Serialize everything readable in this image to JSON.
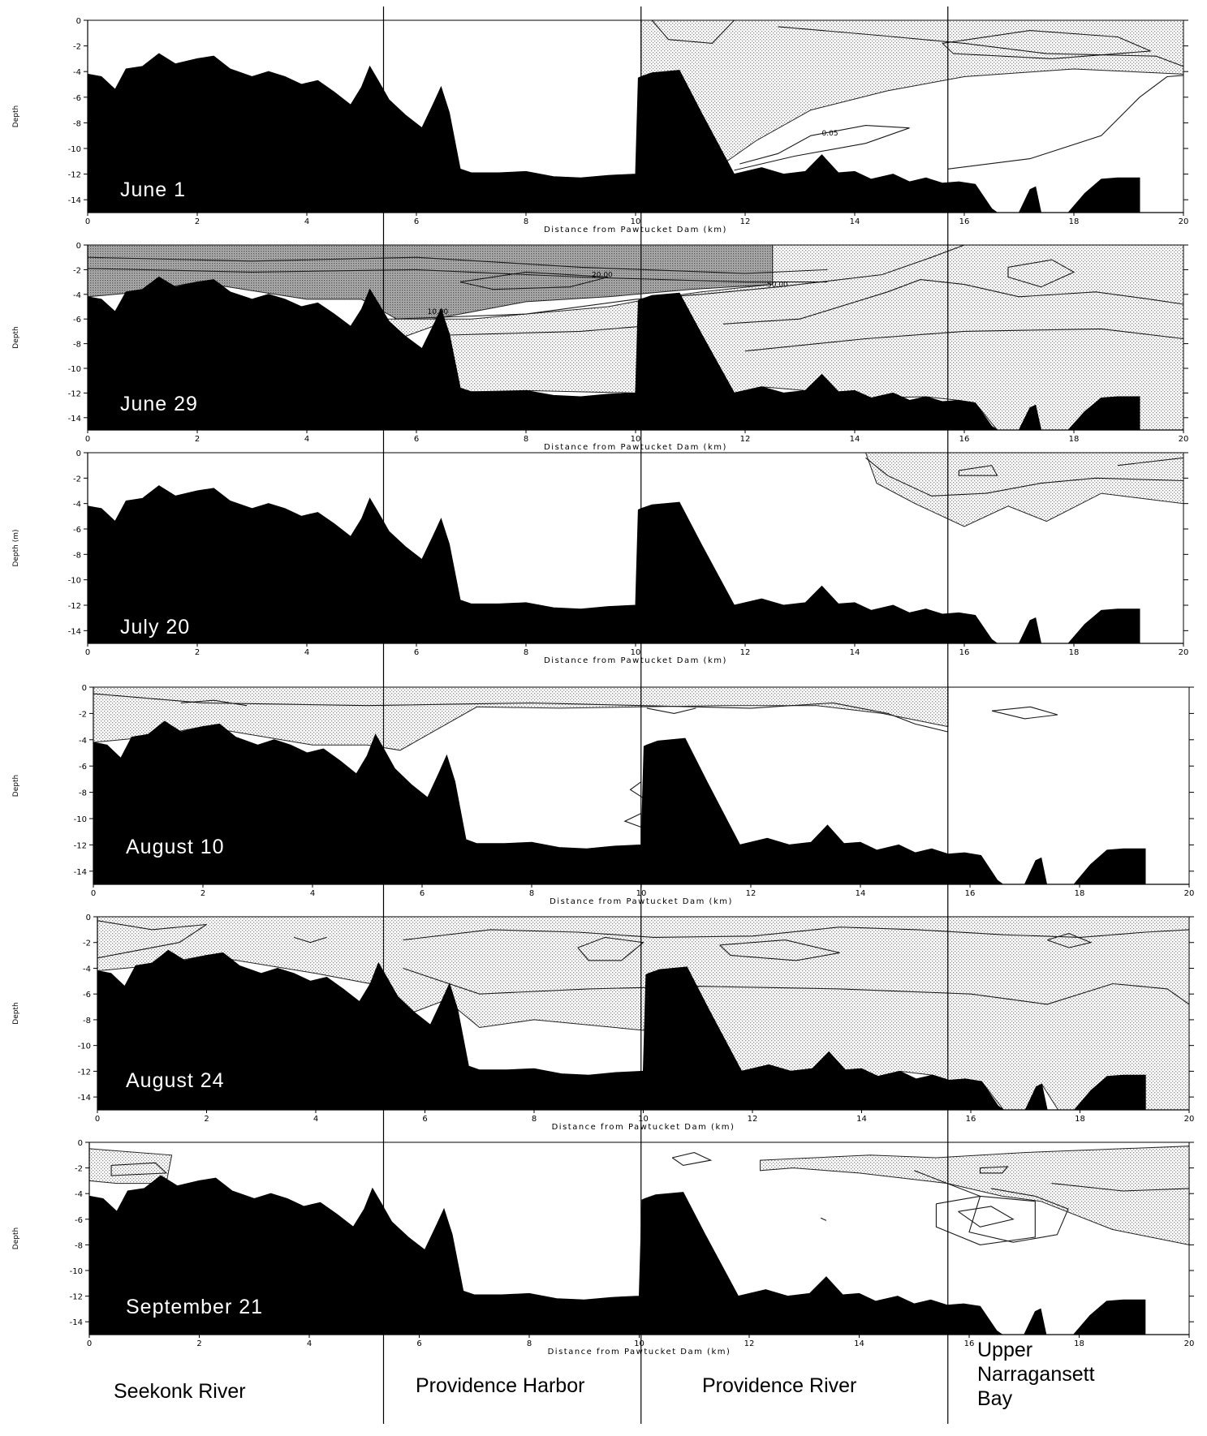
{
  "regions": {
    "seekonk": "Seekonk River",
    "harbor": "Providence Harbor",
    "river": "Providence River",
    "bay": "Upper Narragansett Bay"
  },
  "colors": {
    "bathymetry": "#000000",
    "stipple": "#9a9a9a",
    "contour": "#1a1a1a"
  },
  "chart_data": [
    {
      "type": "area",
      "title": "June 1",
      "xlabel": "Distance from Pawtucket Dam (km)",
      "ylabel": "Depth",
      "xlim": [
        0,
        20
      ],
      "ylim": [
        -15,
        0
      ],
      "x_ticks": [
        "0",
        "2",
        "4",
        "6",
        "8",
        "10",
        "12",
        "14",
        "16",
        "18",
        "20"
      ],
      "y_ticks": [
        "0",
        "-2",
        "-4",
        "-6",
        "-8",
        "-10",
        "-12",
        "-14"
      ],
      "contour_labels": [
        "0.05"
      ],
      "shading": "light-surface-east",
      "region_boundaries_km": [
        5.4,
        10.1,
        15.7
      ]
    },
    {
      "type": "area",
      "title": "June 29",
      "xlabel": "Distance from Pawtucket Dam (km)",
      "ylabel": "Depth",
      "xlim": [
        0,
        20
      ],
      "ylim": [
        -15,
        0
      ],
      "x_ticks": [
        "0",
        "2",
        "4",
        "6",
        "8",
        "10",
        "12",
        "14",
        "16",
        "18",
        "20"
      ],
      "y_ticks": [
        "0",
        "-2",
        "-4",
        "-6",
        "-8",
        "-10",
        "-12",
        "-14"
      ],
      "contour_labels": [
        "20.00",
        "50.00",
        "10.00"
      ],
      "shading": "heavy-surface-all",
      "region_boundaries_km": [
        5.4,
        10.1,
        15.7
      ]
    },
    {
      "type": "area",
      "title": "July 20",
      "xlabel": "Distance from Pawtucket Dam (km)",
      "ylabel": "Depth (m)",
      "xlim": [
        0,
        20
      ],
      "ylim": [
        -15,
        0
      ],
      "x_ticks": [
        "0",
        "2",
        "4",
        "6",
        "8",
        "10",
        "12",
        "14",
        "16",
        "18",
        "20"
      ],
      "y_ticks": [
        "0",
        "-2",
        "-4",
        "-6",
        "-8",
        "-10",
        "-12",
        "-14"
      ],
      "contour_labels": [],
      "shading": "light-surface-bay",
      "region_boundaries_km": [
        5.4,
        10.1,
        15.7
      ]
    },
    {
      "type": "area",
      "title": "August 10",
      "xlabel": "Distance from Pawtucket Dam (km)",
      "ylabel": "Depth",
      "xlim": [
        0,
        20
      ],
      "ylim": [
        -15,
        0
      ],
      "x_ticks": [
        "0",
        "2",
        "4",
        "6",
        "8",
        "10",
        "12",
        "14",
        "16",
        "18",
        "20"
      ],
      "y_ticks": [
        "0",
        "-2",
        "-4",
        "-6",
        "-8",
        "-10",
        "-12",
        "-14"
      ],
      "contour_labels": [],
      "shading": "surface-west",
      "region_boundaries_km": [
        5.4,
        10.1,
        15.7
      ]
    },
    {
      "type": "area",
      "title": "August 24",
      "xlabel": "Distance from Pawtucket Dam (km)",
      "ylabel": "Depth",
      "xlim": [
        0,
        20
      ],
      "ylim": [
        -15,
        0
      ],
      "x_ticks": [
        "0",
        "2",
        "4",
        "6",
        "8",
        "10",
        "12",
        "14",
        "16",
        "18",
        "20"
      ],
      "y_ticks": [
        "0",
        "-2",
        "-4",
        "-6",
        "-8",
        "-10",
        "-12",
        "-14"
      ],
      "contour_labels": [],
      "shading": "deep-all",
      "region_boundaries_km": [
        5.4,
        10.1,
        15.7
      ]
    },
    {
      "type": "area",
      "title": "September 21",
      "xlabel": "Distance from Pawtucket Dam (km)",
      "ylabel": "Depth",
      "xlim": [
        0,
        20
      ],
      "ylim": [
        -15,
        0
      ],
      "x_ticks": [
        "0",
        "2",
        "4",
        "6",
        "8",
        "10",
        "12",
        "14",
        "16",
        "18",
        "20"
      ],
      "y_ticks": [
        "0",
        "-2",
        "-4",
        "-6",
        "-8",
        "-10",
        "-12",
        "-14"
      ],
      "contour_labels": [],
      "shading": "surface-patchy",
      "region_boundaries_km": [
        5.4,
        10.1,
        15.7
      ]
    }
  ],
  "bathymetry": {
    "x": [
      0,
      0.25,
      0.5,
      0.7,
      1.0,
      1.3,
      1.6,
      2.0,
      2.3,
      2.6,
      3.0,
      3.3,
      3.6,
      3.9,
      4.2,
      4.5,
      4.8,
      5.0,
      5.15,
      5.3,
      5.5,
      5.8,
      6.1,
      6.3,
      6.45,
      6.6,
      6.8,
      7.0,
      7.5,
      8.0,
      8.5,
      9.0,
      9.5,
      10.0,
      10.05,
      10.1,
      10.3,
      10.8,
      11.2,
      11.8,
      12.3,
      12.7,
      13.1,
      13.4,
      13.7,
      14.0,
      14.3,
      14.7,
      15.0,
      15.3,
      15.6,
      15.9,
      16.2,
      16.5,
      16.6,
      16.8,
      17.0,
      17.2,
      17.3,
      17.4,
      17.6,
      17.9,
      18.2,
      18.5,
      18.8,
      19.1,
      19.2
    ],
    "depth": [
      -4.2,
      -4.4,
      -5.4,
      -3.8,
      -3.6,
      -2.6,
      -3.4,
      -3.0,
      -2.8,
      -3.8,
      -4.4,
      -4.0,
      -4.4,
      -5.0,
      -4.7,
      -5.6,
      -6.6,
      -5.2,
      -3.6,
      -4.7,
      -6.2,
      -7.4,
      -8.4,
      -6.6,
      -5.2,
      -7.2,
      -11.6,
      -11.9,
      -11.9,
      -11.8,
      -12.2,
      -12.3,
      -12.1,
      -12.0,
      -4.5,
      -4.4,
      -4.1,
      -3.9,
      -7.2,
      -12.0,
      -11.5,
      -12.0,
      -11.8,
      -10.5,
      -11.9,
      -11.8,
      -12.4,
      -12.0,
      -12.6,
      -12.3,
      -12.7,
      -12.6,
      -12.8,
      -14.7,
      -15.0,
      -15.0,
      -15.0,
      -13.2,
      -13.0,
      -15.0,
      -15.0,
      -15.0,
      -13.5,
      -12.4,
      -12.3,
      -12.3,
      -12.3
    ]
  }
}
